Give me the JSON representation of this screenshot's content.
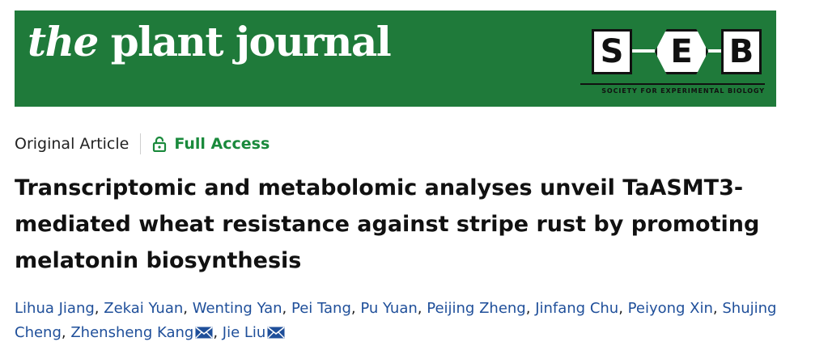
{
  "colors": {
    "brand": "#1f7a3a",
    "access": "#1a8a3c",
    "link": "#1f4f9a"
  },
  "header": {
    "journal_logo_the": "the",
    "journal_logo_rest": "plant journal",
    "seb_letters": [
      "S",
      "E",
      "B"
    ],
    "seb_society": "SOCIETY FOR EXPERIMENTAL BIOLOGY"
  },
  "article": {
    "type": "Original Article",
    "access_icon": "lock-open-icon",
    "access": "Full Access",
    "title": "Transcriptomic and metabolomic analyses unveil TaASMT3-mediated wheat resistance against stripe rust by promoting melatonin biosynthesis"
  },
  "authors": [
    {
      "name": "Lihua Jiang",
      "corresponding": false
    },
    {
      "name": "Zekai Yuan",
      "corresponding": false
    },
    {
      "name": "Wenting Yan",
      "corresponding": false
    },
    {
      "name": "Pei Tang",
      "corresponding": false
    },
    {
      "name": "Pu Yuan",
      "corresponding": false
    },
    {
      "name": "Peijing Zheng",
      "corresponding": false
    },
    {
      "name": "Jinfang Chu",
      "corresponding": false
    },
    {
      "name": "Peiyong Xin",
      "corresponding": false
    },
    {
      "name": "Shujing Cheng",
      "corresponding": false
    },
    {
      "name": "Zhensheng Kang",
      "corresponding": true
    },
    {
      "name": "Jie Liu",
      "corresponding": true
    }
  ],
  "author_separator": ", ",
  "mail_icon": "envelope-icon"
}
